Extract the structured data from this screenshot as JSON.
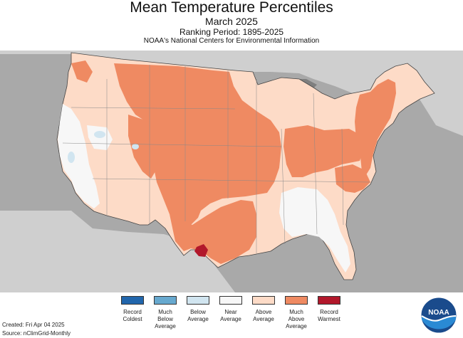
{
  "header": {
    "title": "Mean Temperature Percentiles",
    "period": "March 2025",
    "ranking": "Ranking Period: 1895-2025",
    "source_org": "NOAA's National Centers for Environmental Information"
  },
  "legend": {
    "items": [
      {
        "label": "Record\nColdest",
        "color": "#2166ac"
      },
      {
        "label": "Much\nBelow\nAverage",
        "color": "#67a9cf"
      },
      {
        "label": "Below\nAverage",
        "color": "#d1e5f0"
      },
      {
        "label": "Near\nAverage",
        "color": "#f7f7f7"
      },
      {
        "label": "Above\nAverage",
        "color": "#fddbc7"
      },
      {
        "label": "Much\nAbove\nAverage",
        "color": "#ef8a62"
      },
      {
        "label": "Record\nWarmest",
        "color": "#b2182b"
      }
    ]
  },
  "footer": {
    "created": "Created: Fri Apr 04 2025",
    "source": "Source: nClimGrid-Monthly"
  },
  "logo": {
    "text": "NOAA",
    "icon": "noaa-logo-icon"
  },
  "map_colors": {
    "background": "#a9a9a9",
    "foreign_land": "#cfcfcf",
    "water": "#7f7f7f"
  },
  "map_regions": {
    "conus_base": "Above Average",
    "much_above_core": "Much Above Average",
    "new_england": "Much Above Average",
    "mid_atlantic": "Much Above Average",
    "west_coast": "Near Average",
    "southeast": "Near Average",
    "texas_record": "Record Warmest",
    "below_patches": "Below Average"
  }
}
